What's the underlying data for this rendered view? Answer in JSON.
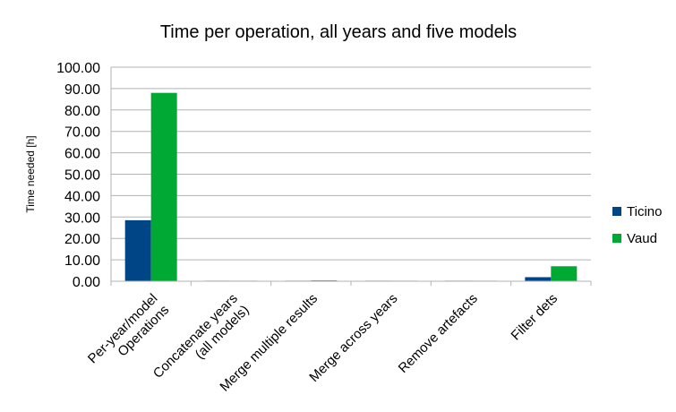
{
  "chart_data": {
    "type": "bar",
    "title": "Time per operation, all years and five models",
    "xlabel": "",
    "ylabel": "Time needed [h]",
    "ylim": [
      0,
      100
    ],
    "ytick_labels": [
      "0.00",
      "10.00",
      "20.00",
      "30.00",
      "40.00",
      "50.00",
      "60.00",
      "70.00",
      "80.00",
      "90.00",
      "100.00"
    ],
    "categories": [
      [
        "Per-year/model",
        "Operations"
      ],
      [
        "Concatenate years",
        "(all models)"
      ],
      [
        "Merge multiple results"
      ],
      [
        "Merge across years"
      ],
      [
        "Remove artefacts"
      ],
      [
        "Filter dets"
      ]
    ],
    "series": [
      {
        "name": "Ticino",
        "color": "#004586",
        "values": [
          28.5,
          0.1,
          0.2,
          0.1,
          0.05,
          1.9
        ]
      },
      {
        "name": "Vaud",
        "color": "#00a933",
        "values": [
          88.0,
          0.1,
          0.4,
          0.1,
          0.05,
          7.0
        ]
      }
    ],
    "grid": true,
    "legend": "right"
  }
}
